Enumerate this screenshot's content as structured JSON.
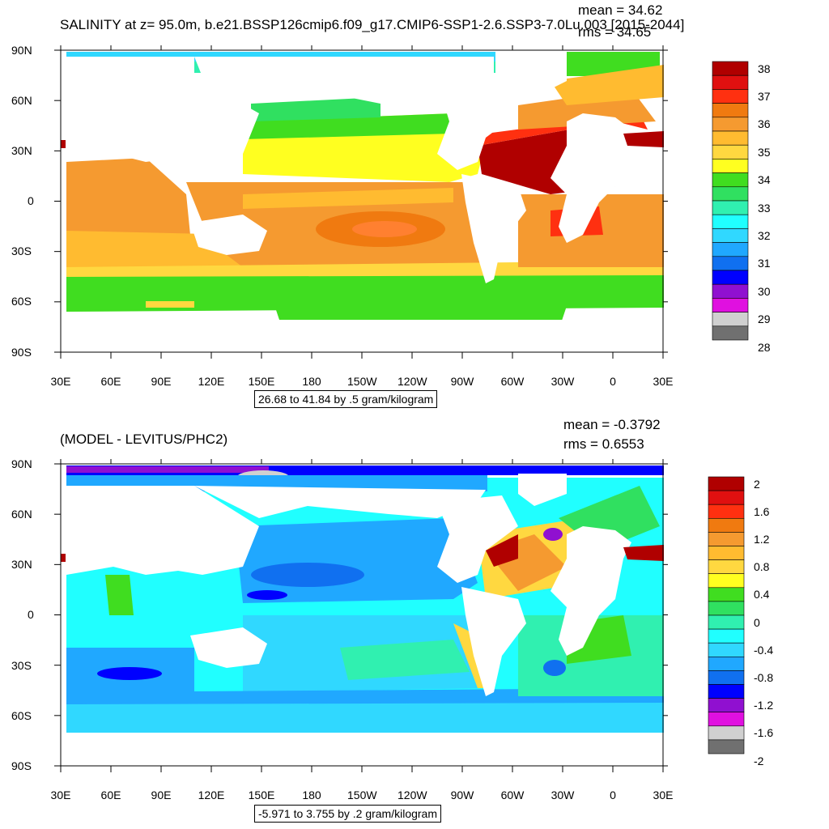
{
  "panels": [
    {
      "title": "SALINITY at z=  95.0m, b.e21.BSSP126cmip6.f09_g17.CMIP6-SSP1-2.6.SSP3-7.0Lu.003 [2015-2044]",
      "mean_text": "mean = 34.62",
      "rms_text": "rms = 34.65",
      "range_text": "26.68 to 41.84 by .5 gram/kilogram",
      "lat_labels": [
        "90N",
        "60N",
        "30N",
        "0",
        "30S",
        "60S",
        "90S"
      ],
      "lon_labels": [
        "30E",
        "60E",
        "90E",
        "120E",
        "150E",
        "180",
        "150W",
        "120W",
        "90W",
        "60W",
        "30W",
        "0",
        "30E"
      ],
      "colorbar_labels": [
        "38",
        "37",
        "36",
        "35",
        "34",
        "33",
        "32",
        "31",
        "30",
        "29",
        "28"
      ],
      "colorbar_colors": [
        "#b00000",
        "#e01010",
        "#ff3010",
        "#f07a10",
        "#f59a30",
        "#ffbb30",
        "#ffd840",
        "#ffff20",
        "#40dd20",
        "#30e060",
        "#30f0b0",
        "#20ffff",
        "#30d8ff",
        "#20a8ff",
        "#1070f0",
        "#0000ff",
        "#9010d0",
        "#e010e0",
        "#d0d0d0",
        "#707070"
      ]
    },
    {
      "title": "(MODEL - LEVITUS/PHC2)",
      "mean_text": "mean = -0.3792",
      "rms_text": "rms = 0.6553",
      "range_text": "-5.971 to 3.755 by .2 gram/kilogram",
      "lat_labels": [
        "90N",
        "60N",
        "30N",
        "0",
        "30S",
        "60S",
        "90S"
      ],
      "lon_labels": [
        "30E",
        "60E",
        "90E",
        "120E",
        "150E",
        "180",
        "150W",
        "120W",
        "90W",
        "60W",
        "30W",
        "0",
        "30E"
      ],
      "colorbar_labels": [
        "2",
        "1.6",
        "1.2",
        "0.8",
        "0.4",
        "0",
        "-0.4",
        "-0.8",
        "-1.2",
        "-1.6",
        "-2"
      ],
      "colorbar_colors": [
        "#b00000",
        "#e01010",
        "#ff3010",
        "#f07a10",
        "#f59a30",
        "#ffbb30",
        "#ffd840",
        "#ffff20",
        "#40dd20",
        "#30e060",
        "#30f0b0",
        "#20ffff",
        "#30d8ff",
        "#20a8ff",
        "#1070f0",
        "#0000ff",
        "#9010d0",
        "#e010e0",
        "#d0d0d0",
        "#707070"
      ]
    }
  ]
}
